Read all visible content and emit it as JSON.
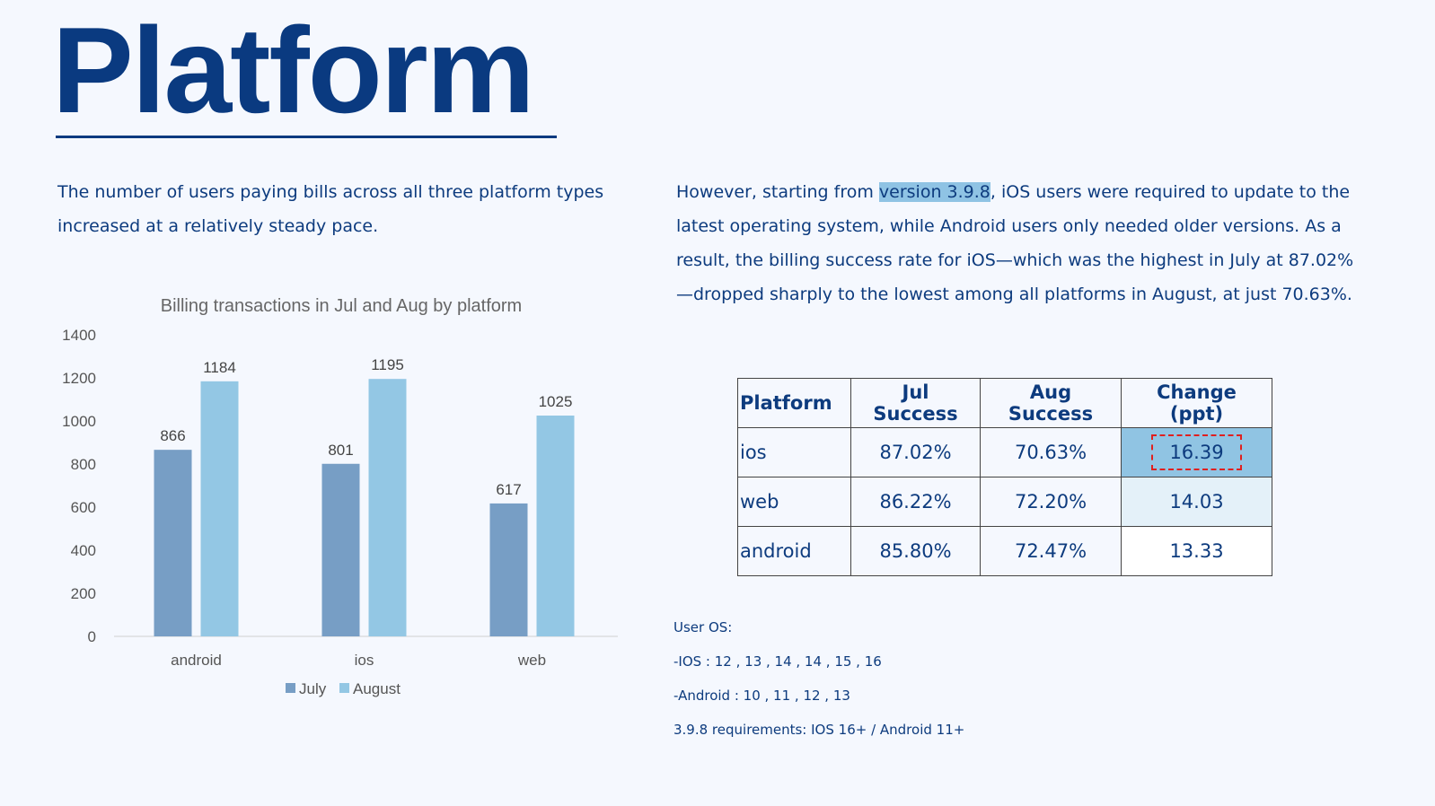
{
  "title": "Platform",
  "left_paragraph": "The number of users paying bills across all three platform types increased at a relatively steady pace.",
  "right_paragraph": {
    "before": "However, starting from ",
    "highlight": "version 3.9.8",
    "after": ", iOS users were required to update to the latest operating system, while Android users only needed older versions. As a result, the billing success rate for iOS—which was the highest in July at 87.02%—dropped sharply to the lowest among all platforms in August, at just 70.63%."
  },
  "table": {
    "headers": [
      "Platform",
      "Jul Success",
      "Aug Success",
      "Change (ppt)"
    ],
    "rows": [
      [
        "ios",
        "87.02%",
        "70.63%",
        "16.39"
      ],
      [
        "web",
        "86.22%",
        "72.20%",
        "14.03"
      ],
      [
        "android",
        "85.80%",
        "72.47%",
        "13.33"
      ]
    ]
  },
  "notes": [
    "User OS:",
    "-IOS : 12 , 13 , 14 , 14 , 15 , 16",
    "-Android : 10 , 11 , 12 , 13",
    "3.9.8 requirements: IOS 16+ / Android 11+"
  ],
  "chart_data": {
    "type": "bar",
    "title": "Billing transactions in Jul and Aug by platform",
    "categories": [
      "android",
      "ios",
      "web"
    ],
    "series": [
      {
        "name": "July",
        "values": [
          866,
          801,
          617
        ],
        "color": "#779ec5"
      },
      {
        "name": "August",
        "values": [
          1184,
          1195,
          1025
        ],
        "color": "#93c7e4"
      }
    ],
    "ylim": [
      0,
      1400
    ],
    "yticks": [
      0,
      200,
      400,
      600,
      800,
      1000,
      1200,
      1400
    ],
    "legend": "bottom",
    "grid": false,
    "xlabel": "",
    "ylabel": ""
  }
}
